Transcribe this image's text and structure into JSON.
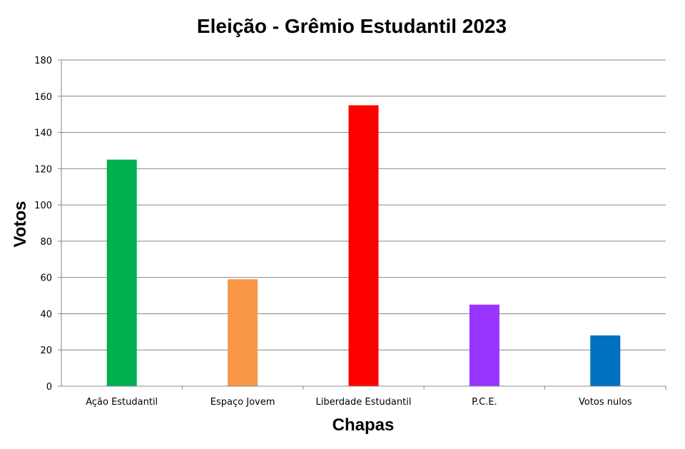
{
  "chart_data": {
    "type": "bar",
    "title": "Eleição -  Grêmio Estudantil 2023",
    "xlabel": "Chapas",
    "ylabel": "Votos",
    "categories": [
      "Ação Estudantil",
      "Espaço Jovem",
      "Liberdade Estudantil",
      "P.C.E.",
      "Votos nulos"
    ],
    "values": [
      125,
      59,
      155,
      45,
      28
    ],
    "colors": [
      "#00b050",
      "#f79646",
      "#ff0000",
      "#9933ff",
      "#0070c0"
    ],
    "ylim": [
      0,
      180
    ],
    "yticks": [
      0,
      20,
      40,
      60,
      80,
      100,
      120,
      140,
      160,
      180
    ],
    "grid": true,
    "legend": "none"
  }
}
